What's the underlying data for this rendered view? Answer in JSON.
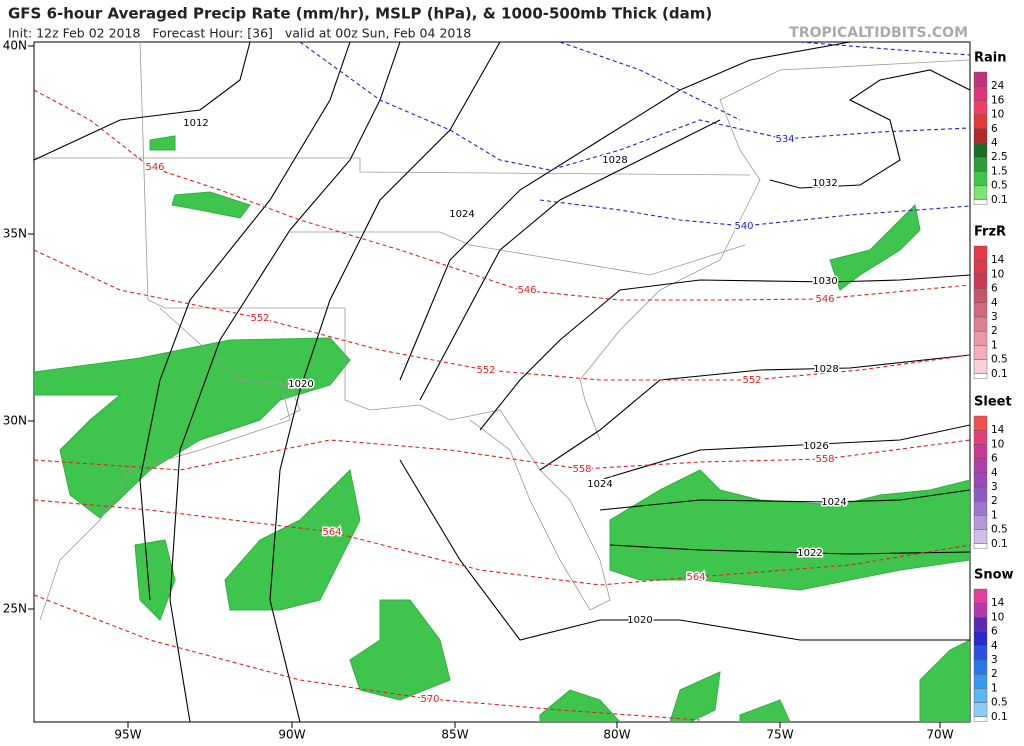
{
  "header": {
    "title": "GFS 6-hour Averaged Precip Rate (mm/hr), MSLP (hPa), & 1000-500mb Thick (dam)",
    "subtitle": "Init: 12z Feb 02 2018   Forecast Hour: [36]   valid at 00z Sun, Feb 04 2018",
    "watermark": "TROPICALTIDBITS.COM"
  },
  "map": {
    "lat_labels": [
      "40N",
      "35N",
      "30N",
      "25N"
    ],
    "lon_labels": [
      "95W",
      "90W",
      "85W",
      "80W",
      "75W",
      "70W"
    ],
    "isobar_labels": [
      "1012",
      "1028",
      "1024",
      "1032",
      "1020",
      "1030",
      "1028",
      "1026",
      "1024",
      "1024",
      "1022",
      "1020"
    ],
    "thickness_labels": [
      "546",
      "534",
      "540",
      "552",
      "546",
      "546",
      "552",
      "552",
      "558",
      "558",
      "564",
      "564",
      "570"
    ]
  },
  "legend": [
    {
      "title": "Rain",
      "labels": [
        "24",
        "16",
        "10",
        "6",
        "4",
        "2.5",
        "1.5",
        "0.5",
        "0.1"
      ],
      "colors": [
        "#c0337c",
        "#e0337c",
        "#f0406a",
        "#e03a3a",
        "#b02a2a",
        "#1d6b2a",
        "#2e9a3a",
        "#3fc44d",
        "#7ee27a"
      ]
    },
    {
      "title": "FrzR",
      "labels": [
        "14",
        "10",
        "6",
        "4",
        "3",
        "2",
        "1",
        "0.5",
        "0.1"
      ],
      "colors": [
        "#e83a46",
        "#d83a4e",
        "#c83a58",
        "#c4566a",
        "#d06a7c",
        "#dc8090",
        "#e898a6",
        "#f0b0bc",
        "#f8d0d8"
      ]
    },
    {
      "title": "Sleet",
      "labels": [
        "14",
        "10",
        "6",
        "4",
        "3",
        "2",
        "1",
        "0.5",
        "0.1"
      ],
      "colors": [
        "#f05050",
        "#e0407a",
        "#c83a98",
        "#b040a8",
        "#9a48b4",
        "#8c5ac0",
        "#9a78cc",
        "#b09ad8",
        "#d0c0e8"
      ]
    },
    {
      "title": "Snow",
      "labels": [
        "14",
        "10",
        "6",
        "4",
        "3",
        "2",
        "1",
        "0.5",
        "0.1"
      ],
      "colors": [
        "#e0409a",
        "#b03ab0",
        "#5a2ab4",
        "#2a2ac8",
        "#2a50dc",
        "#2a78e8",
        "#3a98f0",
        "#60b4f4",
        "#90ccf8"
      ]
    }
  ]
}
